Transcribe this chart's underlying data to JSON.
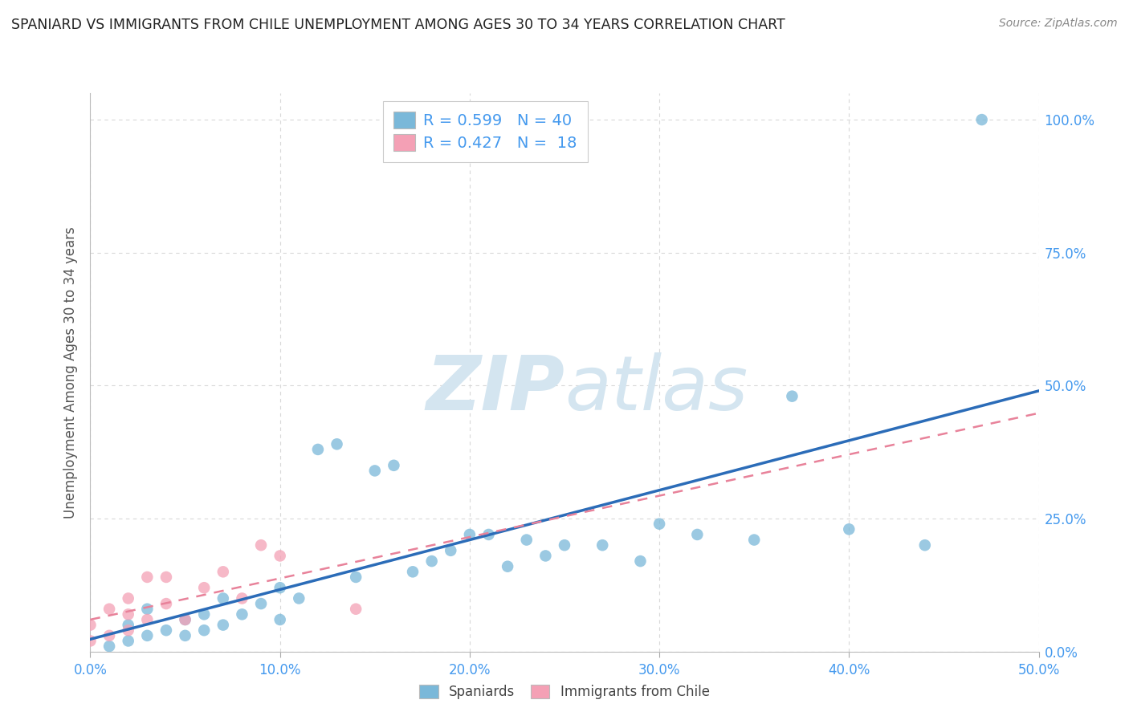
{
  "title": "SPANIARD VS IMMIGRANTS FROM CHILE UNEMPLOYMENT AMONG AGES 30 TO 34 YEARS CORRELATION CHART",
  "source": "Source: ZipAtlas.com",
  "ylabel": "Unemployment Among Ages 30 to 34 years",
  "xlim": [
    0.0,
    0.5
  ],
  "ylim": [
    0.0,
    1.05
  ],
  "x_ticks": [
    0.0,
    0.1,
    0.2,
    0.3,
    0.4,
    0.5
  ],
  "x_tick_labels": [
    "0.0%",
    "10.0%",
    "20.0%",
    "30.0%",
    "40.0%",
    "50.0%"
  ],
  "y_ticks": [
    0.0,
    0.25,
    0.5,
    0.75,
    1.0
  ],
  "y_tick_labels": [
    "0.0%",
    "25.0%",
    "50.0%",
    "75.0%",
    "100.0%"
  ],
  "spaniards_x": [
    0.01,
    0.02,
    0.02,
    0.03,
    0.03,
    0.04,
    0.05,
    0.05,
    0.06,
    0.06,
    0.07,
    0.07,
    0.08,
    0.09,
    0.1,
    0.1,
    0.11,
    0.12,
    0.13,
    0.14,
    0.15,
    0.16,
    0.17,
    0.18,
    0.19,
    0.2,
    0.21,
    0.22,
    0.23,
    0.24,
    0.25,
    0.27,
    0.29,
    0.3,
    0.32,
    0.35,
    0.37,
    0.4,
    0.44,
    0.47
  ],
  "spaniards_y": [
    0.01,
    0.02,
    0.05,
    0.03,
    0.08,
    0.04,
    0.03,
    0.06,
    0.04,
    0.07,
    0.05,
    0.1,
    0.07,
    0.09,
    0.06,
    0.12,
    0.1,
    0.38,
    0.39,
    0.14,
    0.34,
    0.35,
    0.15,
    0.17,
    0.19,
    0.22,
    0.22,
    0.16,
    0.21,
    0.18,
    0.2,
    0.2,
    0.17,
    0.24,
    0.22,
    0.21,
    0.48,
    0.23,
    0.2,
    1.0
  ],
  "chile_x": [
    0.0,
    0.0,
    0.01,
    0.01,
    0.02,
    0.02,
    0.02,
    0.03,
    0.03,
    0.04,
    0.04,
    0.05,
    0.06,
    0.07,
    0.08,
    0.09,
    0.1,
    0.14
  ],
  "chile_y": [
    0.02,
    0.05,
    0.03,
    0.08,
    0.04,
    0.07,
    0.1,
    0.06,
    0.14,
    0.09,
    0.14,
    0.06,
    0.12,
    0.15,
    0.1,
    0.2,
    0.18,
    0.08
  ],
  "spaniards_R": 0.599,
  "spaniards_N": 40,
  "chile_R": 0.427,
  "chile_N": 18,
  "spaniards_color": "#7ab8d9",
  "chile_color": "#f4a0b5",
  "spaniards_line_color": "#2b6cb8",
  "chile_line_color": "#e8829a",
  "watermark_color": "#d4e5f0",
  "legend_bottom_labels": [
    "Spaniards",
    "Immigrants from Chile"
  ],
  "background_color": "#ffffff",
  "grid_color": "#d8d8d8"
}
